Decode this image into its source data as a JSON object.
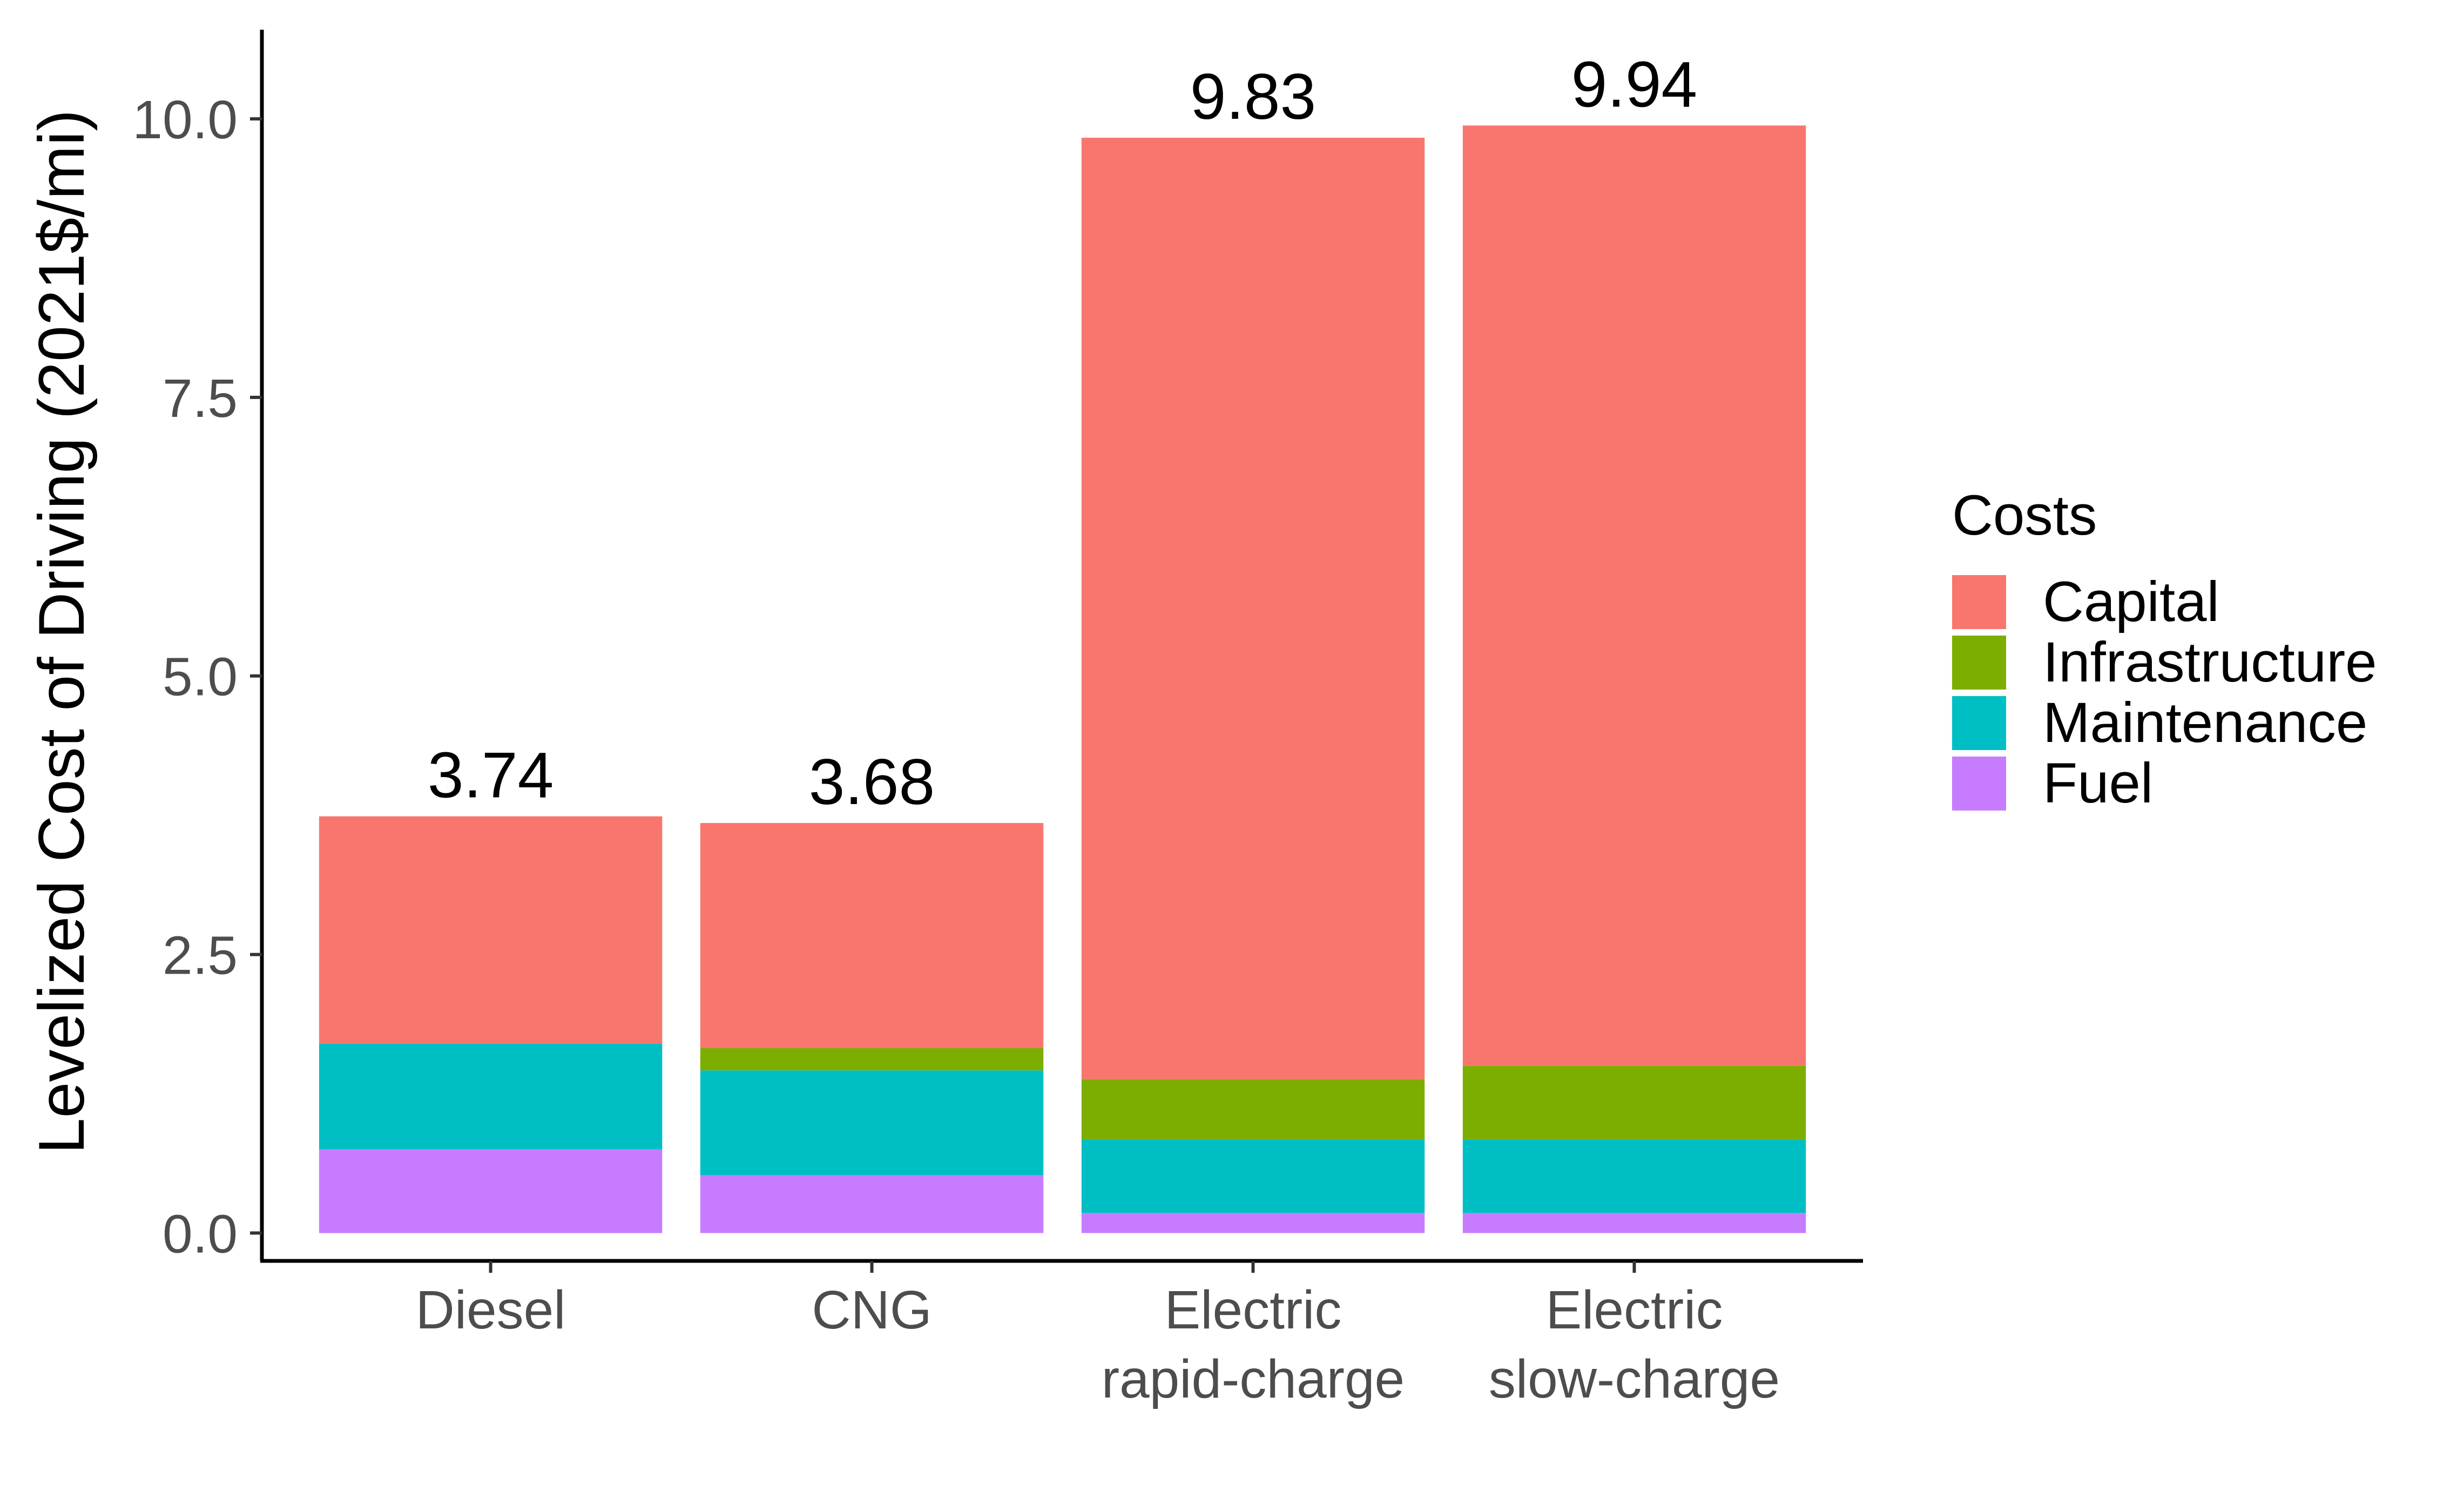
{
  "chart_data": {
    "type": "bar",
    "stacked": true,
    "categories": [
      "Diesel",
      "CNG",
      "Electric\nrapid-charge",
      "Electric\nslow-charge"
    ],
    "ylabel": "Levelized Cost of Driving (2021$/mi)",
    "xlabel": "",
    "ylim": [
      -0.25,
      10.8
    ],
    "yticks": [
      "0.0",
      "2.5",
      "5.0",
      "7.5",
      "10.0"
    ],
    "grid": false,
    "legend": {
      "title": "Costs",
      "position": "right"
    },
    "series": [
      {
        "name": "Fuel",
        "color": "#C77CFF",
        "values": [
          0.75,
          0.52,
          0.18,
          0.18
        ]
      },
      {
        "name": "Maintenance",
        "color": "#00BFC4",
        "values": [
          0.95,
          0.94,
          0.66,
          0.66
        ]
      },
      {
        "name": "Infrastructure",
        "color": "#7CAE00",
        "values": [
          0.0,
          0.2,
          0.54,
          0.66
        ]
      },
      {
        "name": "Capital",
        "color": "#F8766D",
        "values": [
          2.04,
          2.02,
          8.45,
          8.44
        ]
      }
    ],
    "totals": [
      "3.74",
      "3.68",
      "9.83",
      "9.94"
    ],
    "legend_order": [
      "Capital",
      "Infrastructure",
      "Maintenance",
      "Fuel"
    ]
  }
}
